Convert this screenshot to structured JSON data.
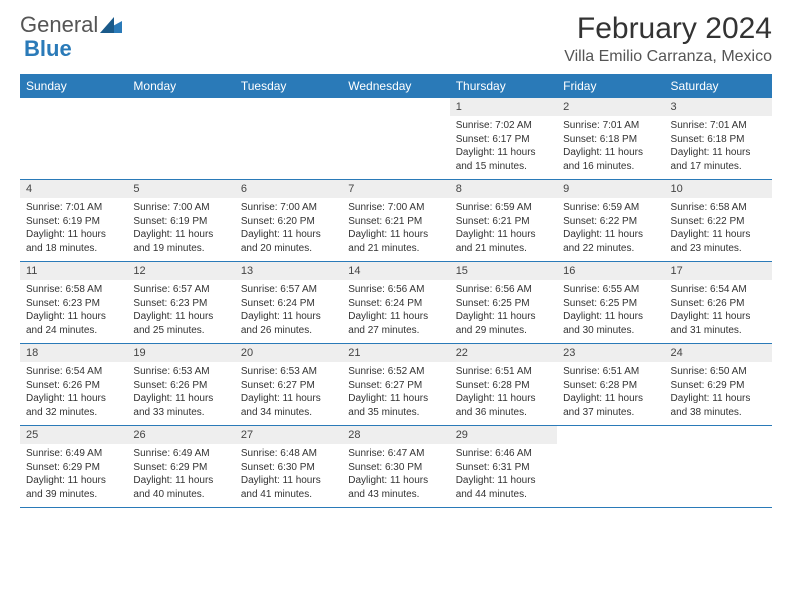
{
  "logo": {
    "text1": "General",
    "text2": "Blue"
  },
  "title": "February 2024",
  "location": "Villa Emilio Carranza, Mexico",
  "colors": {
    "brand": "#2a7ab8",
    "header_bg": "#2a7ab8",
    "header_text": "#ffffff",
    "daynum_bg": "#eeeeee",
    "text": "#333333"
  },
  "days": [
    "Sunday",
    "Monday",
    "Tuesday",
    "Wednesday",
    "Thursday",
    "Friday",
    "Saturday"
  ],
  "weeks": [
    [
      null,
      null,
      null,
      null,
      {
        "n": "1",
        "sr": "7:02 AM",
        "ss": "6:17 PM",
        "dl": "11 hours and 15 minutes."
      },
      {
        "n": "2",
        "sr": "7:01 AM",
        "ss": "6:18 PM",
        "dl": "11 hours and 16 minutes."
      },
      {
        "n": "3",
        "sr": "7:01 AM",
        "ss": "6:18 PM",
        "dl": "11 hours and 17 minutes."
      }
    ],
    [
      {
        "n": "4",
        "sr": "7:01 AM",
        "ss": "6:19 PM",
        "dl": "11 hours and 18 minutes."
      },
      {
        "n": "5",
        "sr": "7:00 AM",
        "ss": "6:19 PM",
        "dl": "11 hours and 19 minutes."
      },
      {
        "n": "6",
        "sr": "7:00 AM",
        "ss": "6:20 PM",
        "dl": "11 hours and 20 minutes."
      },
      {
        "n": "7",
        "sr": "7:00 AM",
        "ss": "6:21 PM",
        "dl": "11 hours and 21 minutes."
      },
      {
        "n": "8",
        "sr": "6:59 AM",
        "ss": "6:21 PM",
        "dl": "11 hours and 21 minutes."
      },
      {
        "n": "9",
        "sr": "6:59 AM",
        "ss": "6:22 PM",
        "dl": "11 hours and 22 minutes."
      },
      {
        "n": "10",
        "sr": "6:58 AM",
        "ss": "6:22 PM",
        "dl": "11 hours and 23 minutes."
      }
    ],
    [
      {
        "n": "11",
        "sr": "6:58 AM",
        "ss": "6:23 PM",
        "dl": "11 hours and 24 minutes."
      },
      {
        "n": "12",
        "sr": "6:57 AM",
        "ss": "6:23 PM",
        "dl": "11 hours and 25 minutes."
      },
      {
        "n": "13",
        "sr": "6:57 AM",
        "ss": "6:24 PM",
        "dl": "11 hours and 26 minutes."
      },
      {
        "n": "14",
        "sr": "6:56 AM",
        "ss": "6:24 PM",
        "dl": "11 hours and 27 minutes."
      },
      {
        "n": "15",
        "sr": "6:56 AM",
        "ss": "6:25 PM",
        "dl": "11 hours and 29 minutes."
      },
      {
        "n": "16",
        "sr": "6:55 AM",
        "ss": "6:25 PM",
        "dl": "11 hours and 30 minutes."
      },
      {
        "n": "17",
        "sr": "6:54 AM",
        "ss": "6:26 PM",
        "dl": "11 hours and 31 minutes."
      }
    ],
    [
      {
        "n": "18",
        "sr": "6:54 AM",
        "ss": "6:26 PM",
        "dl": "11 hours and 32 minutes."
      },
      {
        "n": "19",
        "sr": "6:53 AM",
        "ss": "6:26 PM",
        "dl": "11 hours and 33 minutes."
      },
      {
        "n": "20",
        "sr": "6:53 AM",
        "ss": "6:27 PM",
        "dl": "11 hours and 34 minutes."
      },
      {
        "n": "21",
        "sr": "6:52 AM",
        "ss": "6:27 PM",
        "dl": "11 hours and 35 minutes."
      },
      {
        "n": "22",
        "sr": "6:51 AM",
        "ss": "6:28 PM",
        "dl": "11 hours and 36 minutes."
      },
      {
        "n": "23",
        "sr": "6:51 AM",
        "ss": "6:28 PM",
        "dl": "11 hours and 37 minutes."
      },
      {
        "n": "24",
        "sr": "6:50 AM",
        "ss": "6:29 PM",
        "dl": "11 hours and 38 minutes."
      }
    ],
    [
      {
        "n": "25",
        "sr": "6:49 AM",
        "ss": "6:29 PM",
        "dl": "11 hours and 39 minutes."
      },
      {
        "n": "26",
        "sr": "6:49 AM",
        "ss": "6:29 PM",
        "dl": "11 hours and 40 minutes."
      },
      {
        "n": "27",
        "sr": "6:48 AM",
        "ss": "6:30 PM",
        "dl": "11 hours and 41 minutes."
      },
      {
        "n": "28",
        "sr": "6:47 AM",
        "ss": "6:30 PM",
        "dl": "11 hours and 43 minutes."
      },
      {
        "n": "29",
        "sr": "6:46 AM",
        "ss": "6:31 PM",
        "dl": "11 hours and 44 minutes."
      },
      null,
      null
    ]
  ],
  "labels": {
    "sunrise": "Sunrise:",
    "sunset": "Sunset:",
    "daylight": "Daylight:"
  }
}
